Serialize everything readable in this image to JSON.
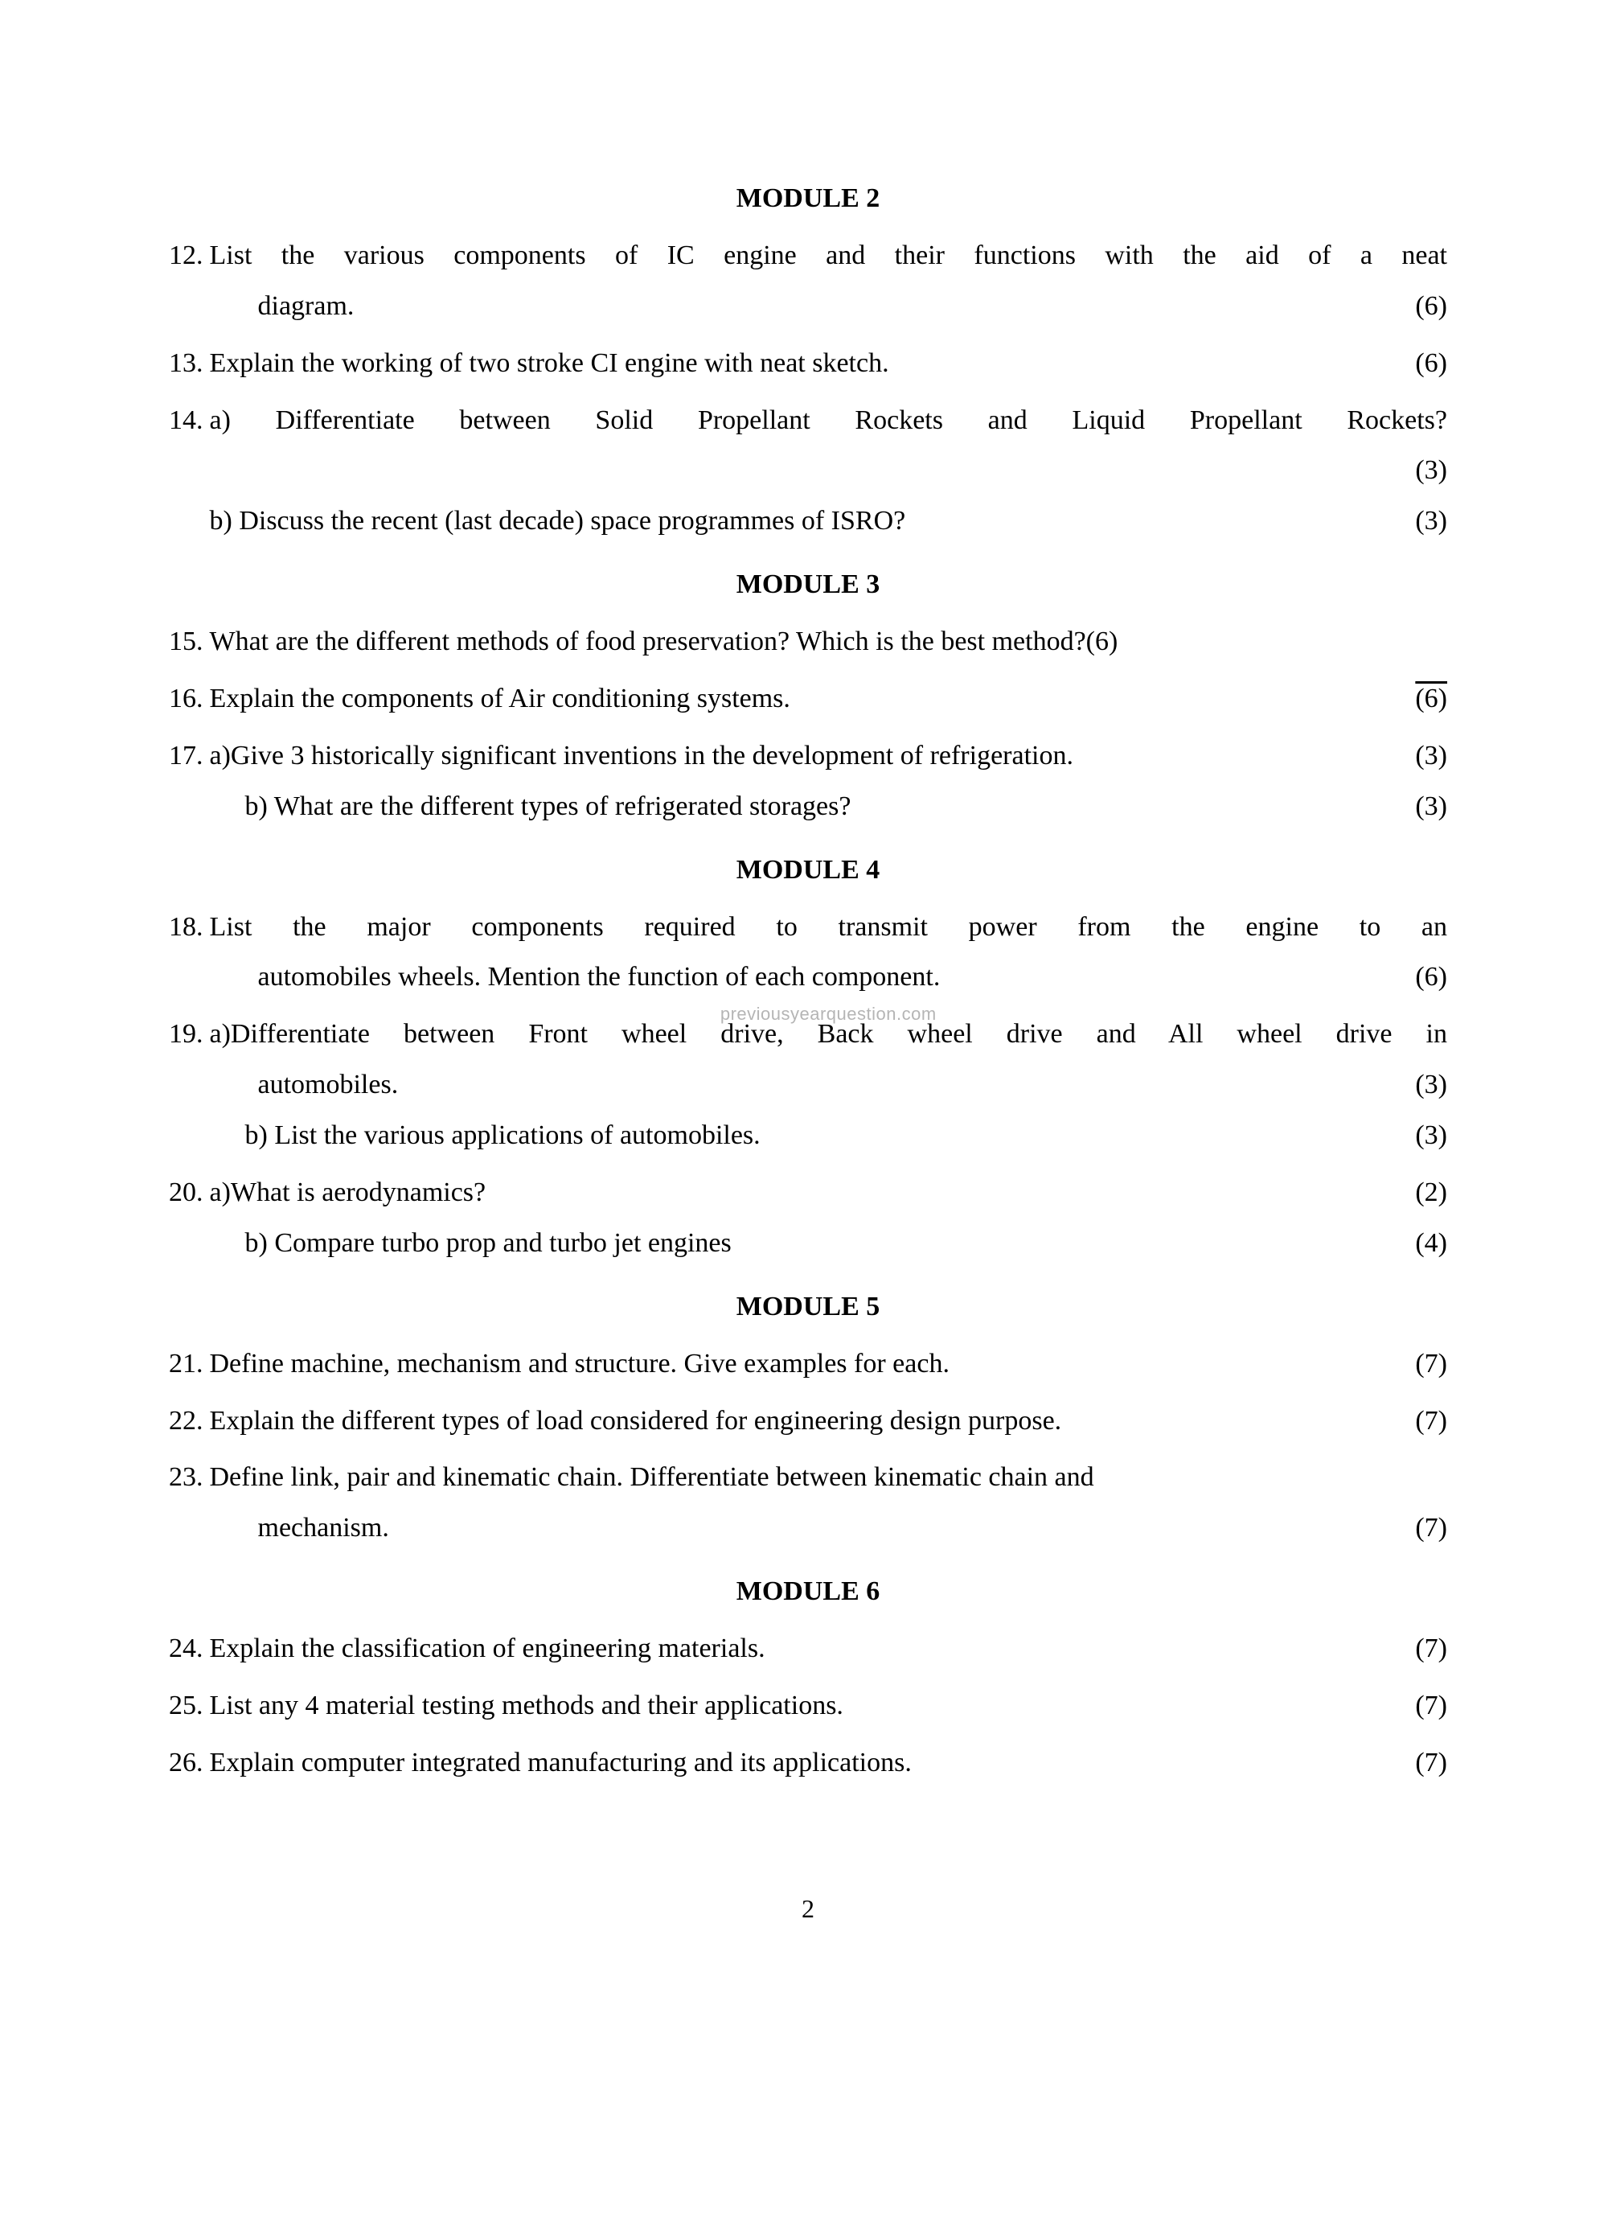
{
  "pageNumber": "2",
  "watermark": "previousyearquestion.com",
  "modules": [
    {
      "heading": "MODULE 2",
      "questions": [
        {
          "num": "12.",
          "lines": [
            {
              "txt": "List the various components of IC engine and their functions with the aid of a neat",
              "justify": true
            },
            {
              "txt": "diagram.",
              "indent": "indent-diagram",
              "marks": "(6)"
            }
          ]
        },
        {
          "num": "13.",
          "lines": [
            {
              "txt": "Explain the working of two stroke CI engine with neat sketch.",
              "marks": "(6)"
            }
          ]
        },
        {
          "num": "14.",
          "lines": [
            {
              "txt": "a) Differentiate between Solid Propellant Rockets and Liquid Propellant Rockets?",
              "justify": true
            },
            {
              "txt": "",
              "marksOnly": true,
              "marks": "(3)"
            },
            {
              "txt": "b) Discuss the recent (last decade) space programmes of ISRO?",
              "marks": "(3)"
            }
          ]
        }
      ]
    },
    {
      "heading": "MODULE 3",
      "questions": [
        {
          "num": "15.",
          "lines": [
            {
              "txt": "What are the different methods of food preservation? Which is the best method?(6)"
            }
          ]
        },
        {
          "num": "16.",
          "lines": [
            {
              "txt": "Explain the components of Air conditioning systems.",
              "marks": "(6)",
              "overlineMarks": true
            }
          ]
        },
        {
          "num": "17.",
          "lines": [
            {
              "txt": "a)Give 3 historically significant inventions in the development of refrigeration.",
              "marks": "(3)"
            },
            {
              "txt": "b) What are the different types of refrigerated storages?",
              "indent": "indent-sub",
              "marks": "(3)"
            }
          ]
        }
      ]
    },
    {
      "heading": "MODULE 4",
      "questions": [
        {
          "num": "18.",
          "lines": [
            {
              "txt": "List the major components required to transmit power from the engine to an",
              "justify": true
            },
            {
              "txt": "automobiles wheels.  Mention the function of each component.",
              "indent": "indent-diagram",
              "marks": "(6)",
              "watermarkBelow": true
            }
          ]
        },
        {
          "num": "19.",
          "lines": [
            {
              "txt": "a)Differentiate between Front wheel drive, Back wheel drive and All wheel drive in",
              "justify": true
            },
            {
              "txt": "automobiles.",
              "indent": "indent-diagram",
              "marks": "(3)"
            },
            {
              "txt": "b) List the various applications of automobiles.",
              "indent": "indent-sub",
              "marks": "(3)"
            }
          ]
        },
        {
          "num": "20.",
          "lines": [
            {
              "txt": "a)What is aerodynamics?",
              "marks": "(2)"
            },
            {
              "txt": "b) Compare turbo prop and turbo jet engines",
              "indent": "indent-sub",
              "marks": "(4)"
            }
          ]
        }
      ]
    },
    {
      "heading": "MODULE 5",
      "questions": [
        {
          "num": "21. ",
          "lines": [
            {
              "txt": " Define machine, mechanism and structure.  Give examples for each.",
              "marks": "(7)"
            }
          ]
        },
        {
          "num": "22. ",
          "lines": [
            {
              "txt": " Explain the different types of load considered for engineering design purpose.",
              "marks": "(7)"
            }
          ]
        },
        {
          "num": "23. ",
          "lines": [
            {
              "txt": " Define link, pair and kinematic chain. Differentiate between kinematic chain and"
            },
            {
              "txt": "mechanism.",
              "indent": "indent-diagram",
              "marks": "(7)"
            }
          ]
        }
      ]
    },
    {
      "heading": "MODULE 6",
      "questions": [
        {
          "num": "24.",
          "lines": [
            {
              "txt": "Explain the classification of engineering materials.",
              "marks": "(7)"
            }
          ]
        },
        {
          "num": "25.",
          "lines": [
            {
              "txt": "List any 4 material testing methods and their applications.",
              "marks": "(7)"
            }
          ]
        },
        {
          "num": "26.",
          "lines": [
            {
              "txt": "Explain computer integrated manufacturing and its applications.",
              "marks": "(7)"
            }
          ]
        }
      ]
    }
  ]
}
